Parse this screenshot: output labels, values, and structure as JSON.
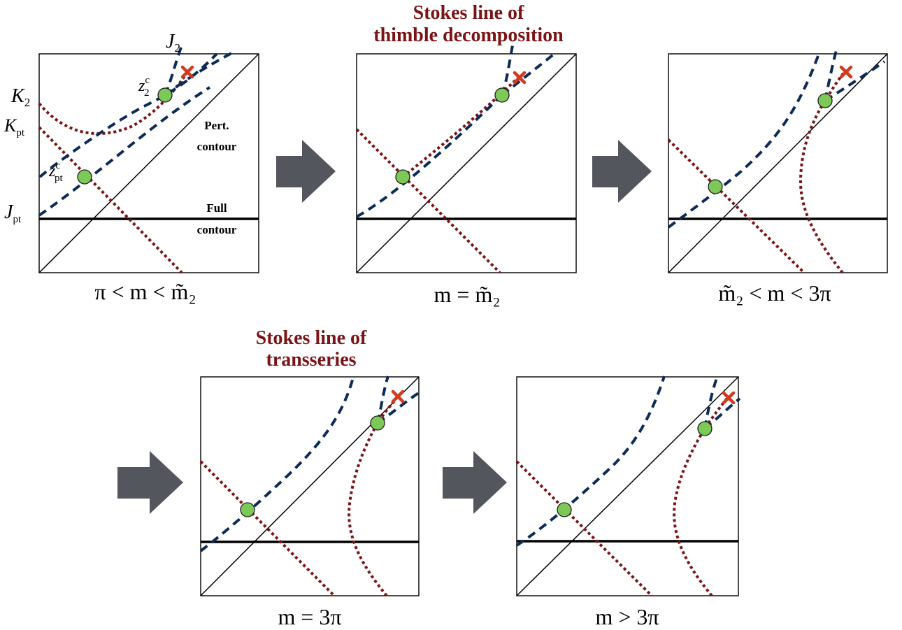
{
  "headings": {
    "thimble": [
      "Stokes line of",
      "thimble decomposition"
    ],
    "transseries": [
      "Stokes line of",
      "transseries"
    ]
  },
  "panels": [
    {
      "id": "p1",
      "label": "π < m < m̃₂"
    },
    {
      "id": "p2",
      "label": "m = m̃₂"
    },
    {
      "id": "p3",
      "label": "m̃₂ < m < 3π"
    },
    {
      "id": "p4",
      "label": "m = 3π"
    },
    {
      "id": "p5",
      "label": "m > 3π"
    }
  ],
  "annotations": {
    "pert_contour": [
      "Pert.",
      "contour"
    ],
    "full_contour": [
      "Full",
      "contour"
    ],
    "J2": {
      "base": "J",
      "sub": "2"
    },
    "K2": {
      "base": "K",
      "sub": "2"
    },
    "Kpt": {
      "base": "K",
      "sub": "pt"
    },
    "Jpt": {
      "base": "J",
      "sub": "pt"
    },
    "z2c": {
      "base": "z",
      "sub": "2",
      "sup": "c"
    },
    "zptc": {
      "base": "z",
      "sub": "pt",
      "sup": "c"
    }
  },
  "colors": {
    "heading": "#7b1416",
    "thimble_dashed": "#0d2b57",
    "dual_dotted": "#7b1416",
    "saddle_point": "#7dc957",
    "pole_marker": "#d23b1f",
    "arrow": "#53565c"
  }
}
